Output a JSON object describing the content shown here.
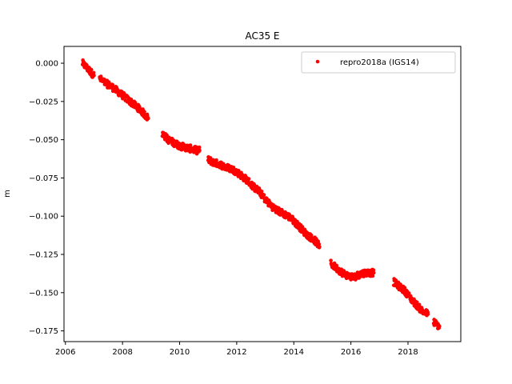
{
  "chart_data": {
    "type": "scatter",
    "title": "AC35 E",
    "xlabel": "",
    "ylabel": "m",
    "xlim": [
      2005.95,
      2019.85
    ],
    "ylim": [
      -0.182,
      0.011
    ],
    "x_ticks": [
      2006,
      2008,
      2010,
      2012,
      2014,
      2016,
      2018
    ],
    "x_tick_labels": [
      "2006",
      "2008",
      "2010",
      "2012",
      "2014",
      "2016",
      "2018"
    ],
    "y_ticks": [
      0.0,
      -0.025,
      -0.05,
      -0.075,
      -0.1,
      -0.125,
      -0.15,
      -0.175
    ],
    "y_tick_labels": [
      "0.000",
      "−0.025",
      "−0.050",
      "−0.075",
      "−0.100",
      "−0.125",
      "−0.150",
      "−0.175"
    ],
    "grid": false,
    "legend_position": "top-right",
    "series": [
      {
        "name": "repro2018a (IGS14)",
        "color": "#ff0000",
        "marker": "circle",
        "segments": [
          {
            "x": [
              2006.6,
              2006.7,
              2006.8,
              2006.9,
              2007.0
            ],
            "y": [
              0.0,
              -0.002,
              -0.004,
              -0.006,
              -0.008
            ]
          },
          {
            "x": [
              2007.2,
              2007.4,
              2007.6,
              2007.8,
              2008.0,
              2008.2,
              2008.4,
              2008.6,
              2008.8,
              2008.9
            ],
            "y": [
              -0.01,
              -0.013,
              -0.015,
              -0.018,
              -0.021,
              -0.024,
              -0.027,
              -0.03,
              -0.034,
              -0.036
            ]
          },
          {
            "x": [
              2009.4,
              2009.6,
              2009.8,
              2010.0,
              2010.2,
              2010.4,
              2010.6,
              2010.7
            ],
            "y": [
              -0.046,
              -0.05,
              -0.052,
              -0.054,
              -0.055,
              -0.056,
              -0.057,
              -0.057
            ]
          },
          {
            "x": [
              2011.0,
              2011.2,
              2011.4,
              2011.6,
              2011.8,
              2012.0,
              2012.2,
              2012.4,
              2012.6,
              2012.8,
              2013.0,
              2013.2,
              2013.4,
              2013.6,
              2013.8,
              2014.0,
              2014.2,
              2014.4,
              2014.6,
              2014.8,
              2014.9
            ],
            "y": [
              -0.063,
              -0.065,
              -0.066,
              -0.068,
              -0.069,
              -0.071,
              -0.074,
              -0.077,
              -0.081,
              -0.084,
              -0.089,
              -0.093,
              -0.096,
              -0.098,
              -0.1,
              -0.103,
              -0.107,
              -0.111,
              -0.114,
              -0.117,
              -0.12
            ]
          },
          {
            "x": [
              2015.3,
              2015.5,
              2015.7,
              2015.9,
              2016.1,
              2016.3,
              2016.5,
              2016.7,
              2016.8
            ],
            "y": [
              -0.131,
              -0.134,
              -0.137,
              -0.139,
              -0.14,
              -0.138,
              -0.137,
              -0.137,
              -0.137
            ]
          },
          {
            "x": [
              2017.5,
              2017.7,
              2017.9,
              2018.1,
              2018.3,
              2018.5,
              2018.7
            ],
            "y": [
              -0.143,
              -0.146,
              -0.149,
              -0.154,
              -0.158,
              -0.162,
              -0.164
            ]
          },
          {
            "x": [
              2018.9,
              2019.0,
              2019.1
            ],
            "y": [
              -0.169,
              -0.171,
              -0.172
            ]
          }
        ]
      }
    ]
  }
}
